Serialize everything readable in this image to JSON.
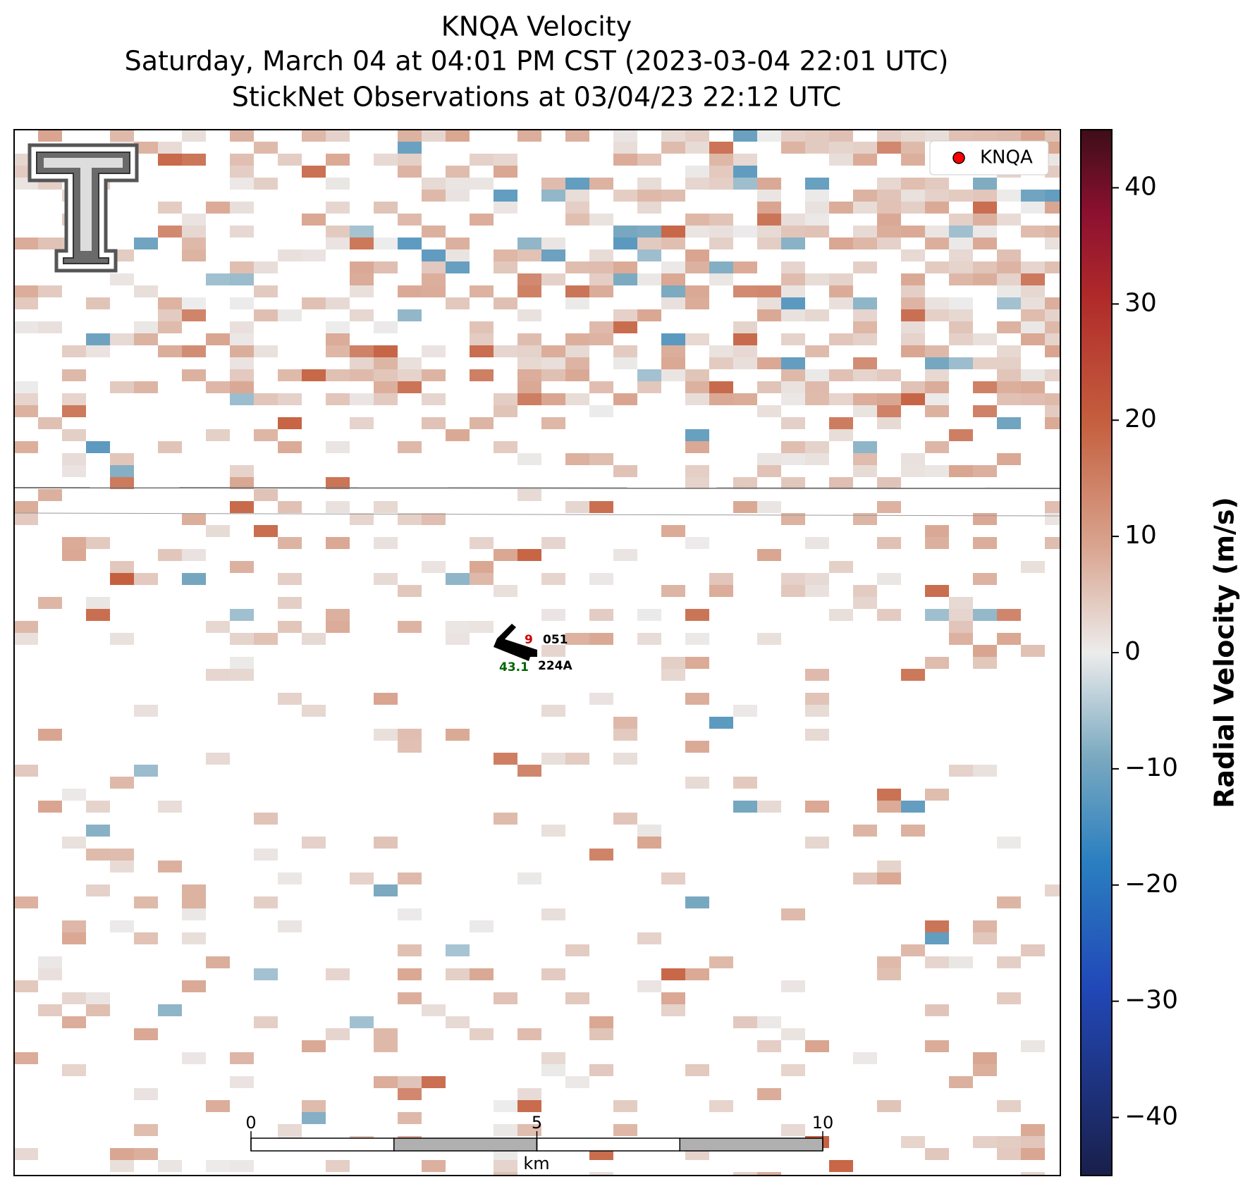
{
  "header": {
    "title_lines": [
      "KNQA Velocity",
      "Saturday, March 04 at 04:01 PM CST (2023-03-04 22:01 UTC)",
      "StickNet Observations at 03/04/23 22:12 UTC"
    ]
  },
  "legend": {
    "label": "KNQA",
    "marker_color": "#ff0000"
  },
  "colorbar": {
    "label": "Radial Velocity (m/s)",
    "lim": [
      -45,
      45
    ],
    "ticks": [
      {
        "value": -40,
        "label": "−40"
      },
      {
        "value": -30,
        "label": "−30"
      },
      {
        "value": -20,
        "label": "−20"
      },
      {
        "value": -10,
        "label": "−10"
      },
      0,
      10,
      20,
      30,
      40
    ]
  },
  "scale_bar": {
    "lim": [
      0,
      10
    ],
    "ticks": [
      0,
      5,
      10
    ],
    "unit": "km"
  },
  "station": {
    "id": "224A",
    "upper_right": "051",
    "lower_left": "43.1",
    "upper_left": "9"
  }
}
